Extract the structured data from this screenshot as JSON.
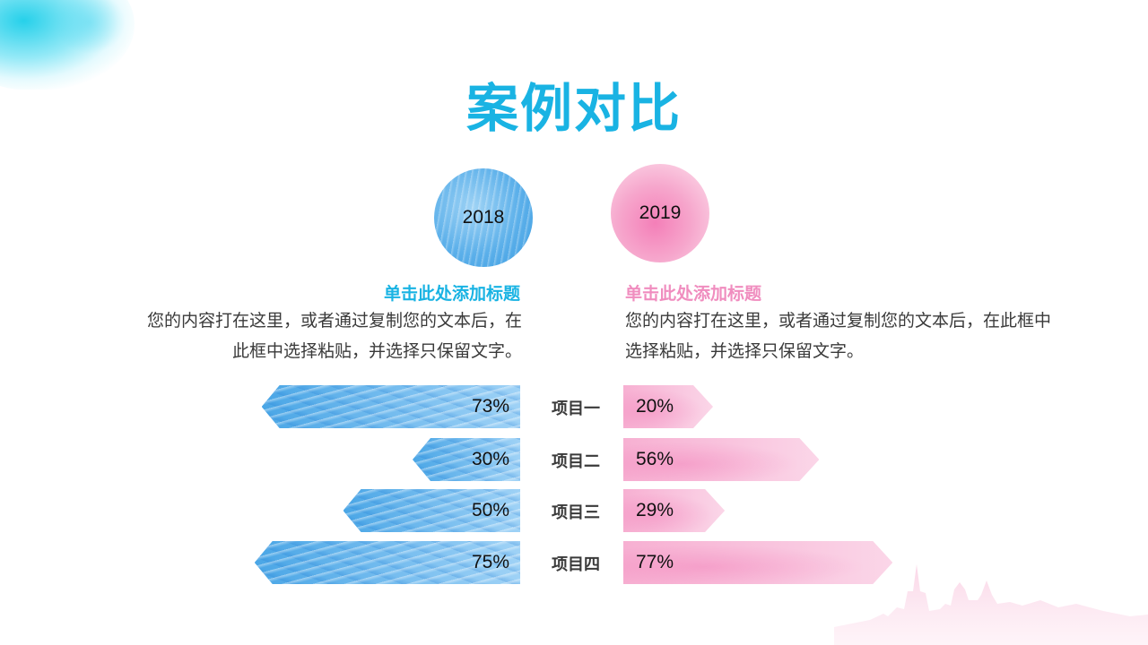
{
  "title": "案例对比",
  "left": {
    "year": "2018",
    "heading": "单击此处添加标题",
    "body": "您的内容打在这里，或者通过复制您的文本后，在此框中选择粘贴，并选择只保留文字。",
    "color": "#19b3e3"
  },
  "right": {
    "year": "2019",
    "heading": "单击此处添加标题",
    "body": "您的内容打在这里，或者通过复制您的文本后，在此框中选择粘贴，并选择只保留文字。",
    "color": "#f08dbf"
  },
  "chart_data": {
    "type": "bar",
    "categories": [
      "项目一",
      "项目二",
      "项目三",
      "项目四"
    ],
    "series": [
      {
        "name": "2018",
        "values": [
          73,
          30,
          50,
          75
        ],
        "labels": [
          "73%",
          "30%",
          "50%",
          "75%"
        ],
        "color": "#4aa6e6"
      },
      {
        "name": "2019",
        "values": [
          20,
          56,
          29,
          77
        ],
        "labels": [
          "20%",
          "56%",
          "29%",
          "77%"
        ],
        "color": "#f7b0d2"
      }
    ],
    "title": "",
    "xlabel": "",
    "ylabel": "",
    "ylim": [
      0,
      100
    ]
  }
}
